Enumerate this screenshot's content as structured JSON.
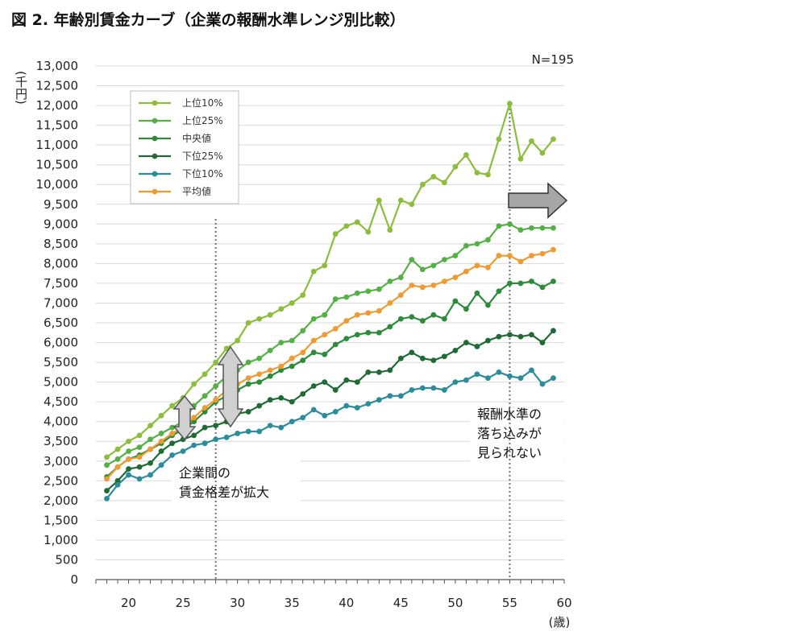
{
  "title": "図 2. 年齢別賃金カーブ（企業の報酬水準レンジ別比較）",
  "chart_data": {
    "type": "line",
    "n_label": "N=195",
    "ylabel": "(千円)",
    "xunit": "(歳)",
    "ylim": [
      0,
      13000
    ],
    "yticks": [
      0,
      500,
      1000,
      1500,
      2000,
      2500,
      3000,
      3500,
      4000,
      4500,
      5000,
      5500,
      6000,
      6500,
      7000,
      7500,
      8000,
      8500,
      9000,
      9500,
      10000,
      10500,
      11000,
      11500,
      12000,
      12500,
      13000
    ],
    "ytick_labels": [
      "0",
      "500",
      "1,000",
      "1,500",
      "2,000",
      "2,500",
      "3,000",
      "3,500",
      "4,000",
      "4,500",
      "5,000",
      "5,500",
      "6,000",
      "6,500",
      "7,000",
      "7,500",
      "8,000",
      "8,500",
      "9,000",
      "9,500",
      "10,000",
      "10,500",
      "11,000",
      "11,500",
      "12,000",
      "12,500",
      "13,000"
    ],
    "xlim": [
      17,
      60
    ],
    "xticks": [
      20,
      25,
      30,
      35,
      40,
      45,
      50,
      55,
      60
    ],
    "x": [
      18,
      19,
      20,
      21,
      22,
      23,
      24,
      25,
      26,
      27,
      28,
      29,
      30,
      31,
      32,
      33,
      34,
      35,
      36,
      37,
      38,
      39,
      40,
      41,
      42,
      43,
      44,
      45,
      46,
      47,
      48,
      49,
      50,
      51,
      52,
      53,
      54,
      55,
      56,
      57,
      58,
      59
    ],
    "series": [
      {
        "name": "上位10%",
        "color": "#8cbd3c",
        "values": [
          3100,
          3300,
          3500,
          3650,
          3900,
          4150,
          4400,
          4600,
          4950,
          5200,
          5500,
          5850,
          6050,
          6500,
          6600,
          6700,
          6850,
          7000,
          7200,
          7800,
          7950,
          8750,
          8950,
          9050,
          8800,
          9600,
          8850,
          9600,
          9500,
          10000,
          10200,
          10050,
          10450,
          10750,
          10300,
          10250,
          11150,
          12050,
          10650,
          11100,
          10800,
          11150
        ]
      },
      {
        "name": "上位25%",
        "color": "#55b046",
        "values": [
          2900,
          3050,
          3250,
          3350,
          3550,
          3700,
          3850,
          4000,
          4400,
          4650,
          4900,
          5150,
          5300,
          5500,
          5600,
          5800,
          6000,
          6050,
          6300,
          6600,
          6700,
          7100,
          7150,
          7250,
          7300,
          7350,
          7550,
          7650,
          8100,
          7850,
          7950,
          8100,
          8200,
          8450,
          8500,
          8600,
          8950,
          9000,
          8850,
          8900,
          8900,
          8900
        ]
      },
      {
        "name": "中央値",
        "color": "#2e8b3a",
        "values": [
          2600,
          2850,
          3050,
          3150,
          3300,
          3450,
          3650,
          3800,
          4000,
          4250,
          4500,
          4650,
          4800,
          4950,
          5000,
          5150,
          5300,
          5400,
          5550,
          5750,
          5700,
          5950,
          6100,
          6200,
          6250,
          6250,
          6400,
          6600,
          6650,
          6550,
          6700,
          6600,
          7050,
          6850,
          7250,
          6950,
          7300,
          7500,
          7500,
          7550,
          7400,
          7550
        ]
      },
      {
        "name": "下位25%",
        "color": "#1e6b35",
        "values": [
          2250,
          2500,
          2800,
          2850,
          2950,
          3250,
          3450,
          3550,
          3650,
          3850,
          3900,
          4000,
          4200,
          4250,
          4400,
          4550,
          4600,
          4500,
          4700,
          4900,
          5000,
          4800,
          5050,
          5000,
          5250,
          5250,
          5300,
          5600,
          5750,
          5600,
          5550,
          5650,
          5800,
          6000,
          5900,
          6050,
          6150,
          6200,
          6150,
          6200,
          6000,
          6300
        ]
      },
      {
        "name": "下位10%",
        "color": "#2b8c9c",
        "values": [
          2050,
          2400,
          2650,
          2550,
          2650,
          2900,
          3150,
          3250,
          3400,
          3450,
          3550,
          3600,
          3700,
          3750,
          3750,
          3900,
          3850,
          4000,
          4100,
          4300,
          4150,
          4250,
          4400,
          4350,
          4450,
          4550,
          4650,
          4650,
          4800,
          4850,
          4850,
          4800,
          5000,
          5050,
          5200,
          5100,
          5250,
          5150,
          5100,
          5300,
          4950,
          5100
        ]
      },
      {
        "name": "平均値",
        "color": "#ef9b33",
        "values": [
          2550,
          2850,
          3050,
          3100,
          3300,
          3500,
          3700,
          3850,
          4100,
          4350,
          4550,
          4800,
          4950,
          5100,
          5200,
          5300,
          5400,
          5600,
          5750,
          6050,
          6200,
          6350,
          6550,
          6700,
          6750,
          6800,
          7000,
          7200,
          7450,
          7400,
          7450,
          7550,
          7650,
          7800,
          7950,
          7900,
          8200,
          8200,
          8050,
          8200,
          8250,
          8350
        ]
      }
    ],
    "annotations": [
      {
        "text": [
          "企業間の",
          "賃金格差が拡大"
        ]
      },
      {
        "text": [
          "報酬水準の",
          "落ち込みが",
          "見られない"
        ]
      }
    ]
  }
}
